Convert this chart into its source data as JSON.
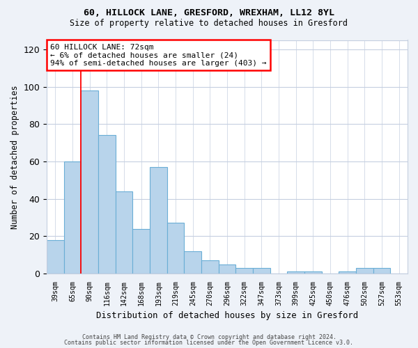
{
  "title1": "60, HILLOCK LANE, GRESFORD, WREXHAM, LL12 8YL",
  "title2": "Size of property relative to detached houses in Gresford",
  "xlabel": "Distribution of detached houses by size in Gresford",
  "ylabel": "Number of detached properties",
  "categories": [
    "39sqm",
    "65sqm",
    "90sqm",
    "116sqm",
    "142sqm",
    "168sqm",
    "193sqm",
    "219sqm",
    "245sqm",
    "270sqm",
    "296sqm",
    "322sqm",
    "347sqm",
    "373sqm",
    "399sqm",
    "425sqm",
    "450sqm",
    "476sqm",
    "502sqm",
    "527sqm",
    "553sqm"
  ],
  "values": [
    18,
    60,
    98,
    74,
    44,
    24,
    57,
    27,
    12,
    7,
    5,
    3,
    3,
    0,
    1,
    1,
    0,
    1,
    3,
    3,
    0
  ],
  "bar_color": "#b8d4eb",
  "bar_edge_color": "#6aaed6",
  "red_line_x": 1.5,
  "annotation_text": "60 HILLOCK LANE: 72sqm\n← 6% of detached houses are smaller (24)\n94% of semi-detached houses are larger (403) →",
  "annotation_box_color": "white",
  "annotation_box_edge_color": "red",
  "ylim": [
    0,
    125
  ],
  "yticks": [
    0,
    20,
    40,
    60,
    80,
    100,
    120
  ],
  "footer1": "Contains HM Land Registry data © Crown copyright and database right 2024.",
  "footer2": "Contains public sector information licensed under the Open Government Licence v3.0.",
  "background_color": "#eef2f8",
  "plot_bg_color": "#ffffff",
  "grid_color": "#c5cfe0"
}
